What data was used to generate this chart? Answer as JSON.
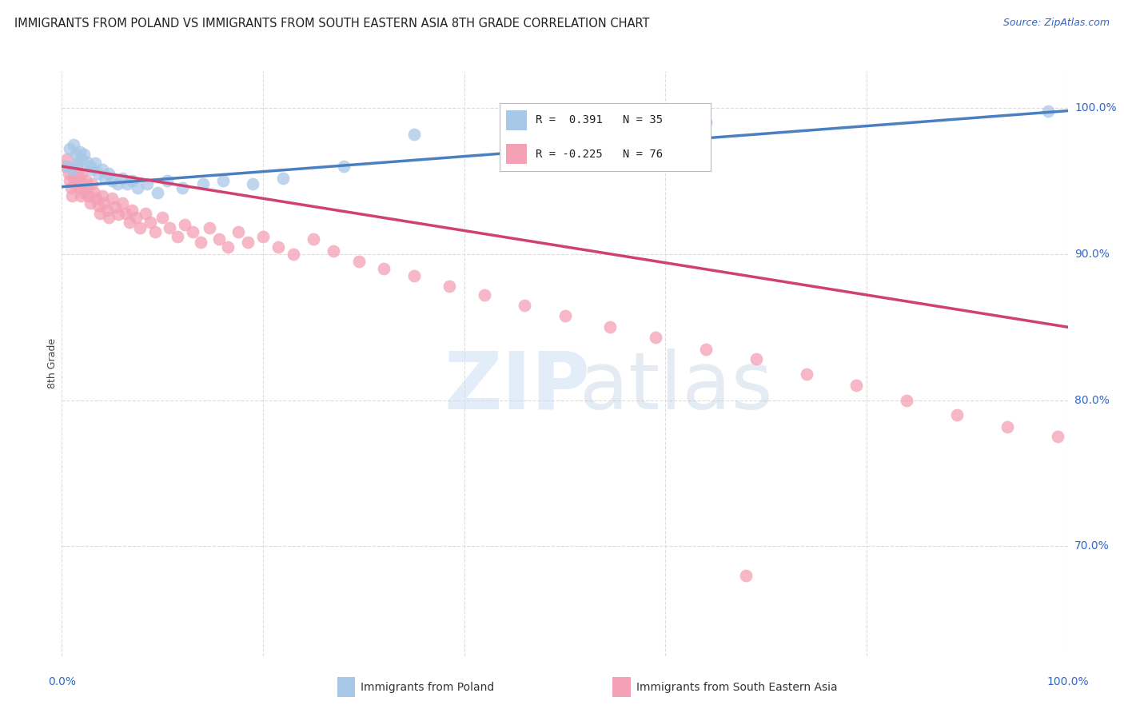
{
  "title": "IMMIGRANTS FROM POLAND VS IMMIGRANTS FROM SOUTH EASTERN ASIA 8TH GRADE CORRELATION CHART",
  "source": "Source: ZipAtlas.com",
  "ylabel": "8th Grade",
  "y_tick_vals": [
    1.0,
    0.9,
    0.8,
    0.7
  ],
  "y_tick_labels": [
    "100.0%",
    "90.0%",
    "80.0%",
    "70.0%"
  ],
  "x_range": [
    0.0,
    1.0
  ],
  "y_range": [
    0.625,
    1.025
  ],
  "legend_blue_r": "0.391",
  "legend_blue_n": "35",
  "legend_pink_r": "-0.225",
  "legend_pink_n": "76",
  "blue_color": "#A8C8E8",
  "pink_color": "#F4A0B5",
  "blue_line_color": "#4A7FC0",
  "pink_line_color": "#D04070",
  "blue_line_y0": 0.946,
  "blue_line_y1": 0.998,
  "pink_line_y0": 0.96,
  "pink_line_y1": 0.85,
  "blue_scatter_x": [
    0.005,
    0.008,
    0.01,
    0.012,
    0.014,
    0.016,
    0.018,
    0.02,
    0.022,
    0.025,
    0.028,
    0.03,
    0.033,
    0.036,
    0.04,
    0.043,
    0.047,
    0.05,
    0.055,
    0.06,
    0.065,
    0.07,
    0.075,
    0.085,
    0.095,
    0.105,
    0.12,
    0.14,
    0.16,
    0.19,
    0.22,
    0.28,
    0.35,
    0.64,
    0.98
  ],
  "blue_scatter_y": [
    0.96,
    0.972,
    0.958,
    0.975,
    0.968,
    0.962,
    0.97,
    0.965,
    0.968,
    0.963,
    0.96,
    0.958,
    0.962,
    0.955,
    0.958,
    0.952,
    0.955,
    0.95,
    0.948,
    0.952,
    0.948,
    0.95,
    0.945,
    0.948,
    0.942,
    0.95,
    0.945,
    0.948,
    0.95,
    0.948,
    0.952,
    0.96,
    0.982,
    0.99,
    0.998
  ],
  "pink_scatter_x": [
    0.003,
    0.005,
    0.007,
    0.008,
    0.009,
    0.01,
    0.011,
    0.012,
    0.013,
    0.015,
    0.016,
    0.017,
    0.018,
    0.019,
    0.02,
    0.021,
    0.022,
    0.024,
    0.025,
    0.027,
    0.028,
    0.03,
    0.032,
    0.034,
    0.036,
    0.038,
    0.04,
    0.042,
    0.045,
    0.047,
    0.05,
    0.053,
    0.056,
    0.06,
    0.063,
    0.067,
    0.07,
    0.074,
    0.078,
    0.083,
    0.088,
    0.093,
    0.1,
    0.107,
    0.115,
    0.122,
    0.13,
    0.138,
    0.147,
    0.156,
    0.165,
    0.175,
    0.185,
    0.2,
    0.215,
    0.23,
    0.25,
    0.27,
    0.295,
    0.32,
    0.35,
    0.385,
    0.42,
    0.46,
    0.5,
    0.545,
    0.59,
    0.64,
    0.69,
    0.74,
    0.79,
    0.84,
    0.89,
    0.94,
    0.99,
    0.68
  ],
  "pink_scatter_y": [
    0.96,
    0.965,
    0.955,
    0.95,
    0.945,
    0.94,
    0.958,
    0.952,
    0.948,
    0.96,
    0.955,
    0.95,
    0.945,
    0.94,
    0.955,
    0.948,
    0.942,
    0.95,
    0.945,
    0.94,
    0.935,
    0.948,
    0.942,
    0.938,
    0.933,
    0.928,
    0.94,
    0.935,
    0.93,
    0.925,
    0.938,
    0.932,
    0.927,
    0.935,
    0.928,
    0.922,
    0.93,
    0.925,
    0.918,
    0.928,
    0.922,
    0.915,
    0.925,
    0.918,
    0.912,
    0.92,
    0.915,
    0.908,
    0.918,
    0.91,
    0.905,
    0.915,
    0.908,
    0.912,
    0.905,
    0.9,
    0.91,
    0.902,
    0.895,
    0.89,
    0.885,
    0.878,
    0.872,
    0.865,
    0.858,
    0.85,
    0.843,
    0.835,
    0.828,
    0.818,
    0.81,
    0.8,
    0.79,
    0.782,
    0.775,
    0.68
  ],
  "background_color": "#ffffff",
  "grid_color": "#dddddd"
}
